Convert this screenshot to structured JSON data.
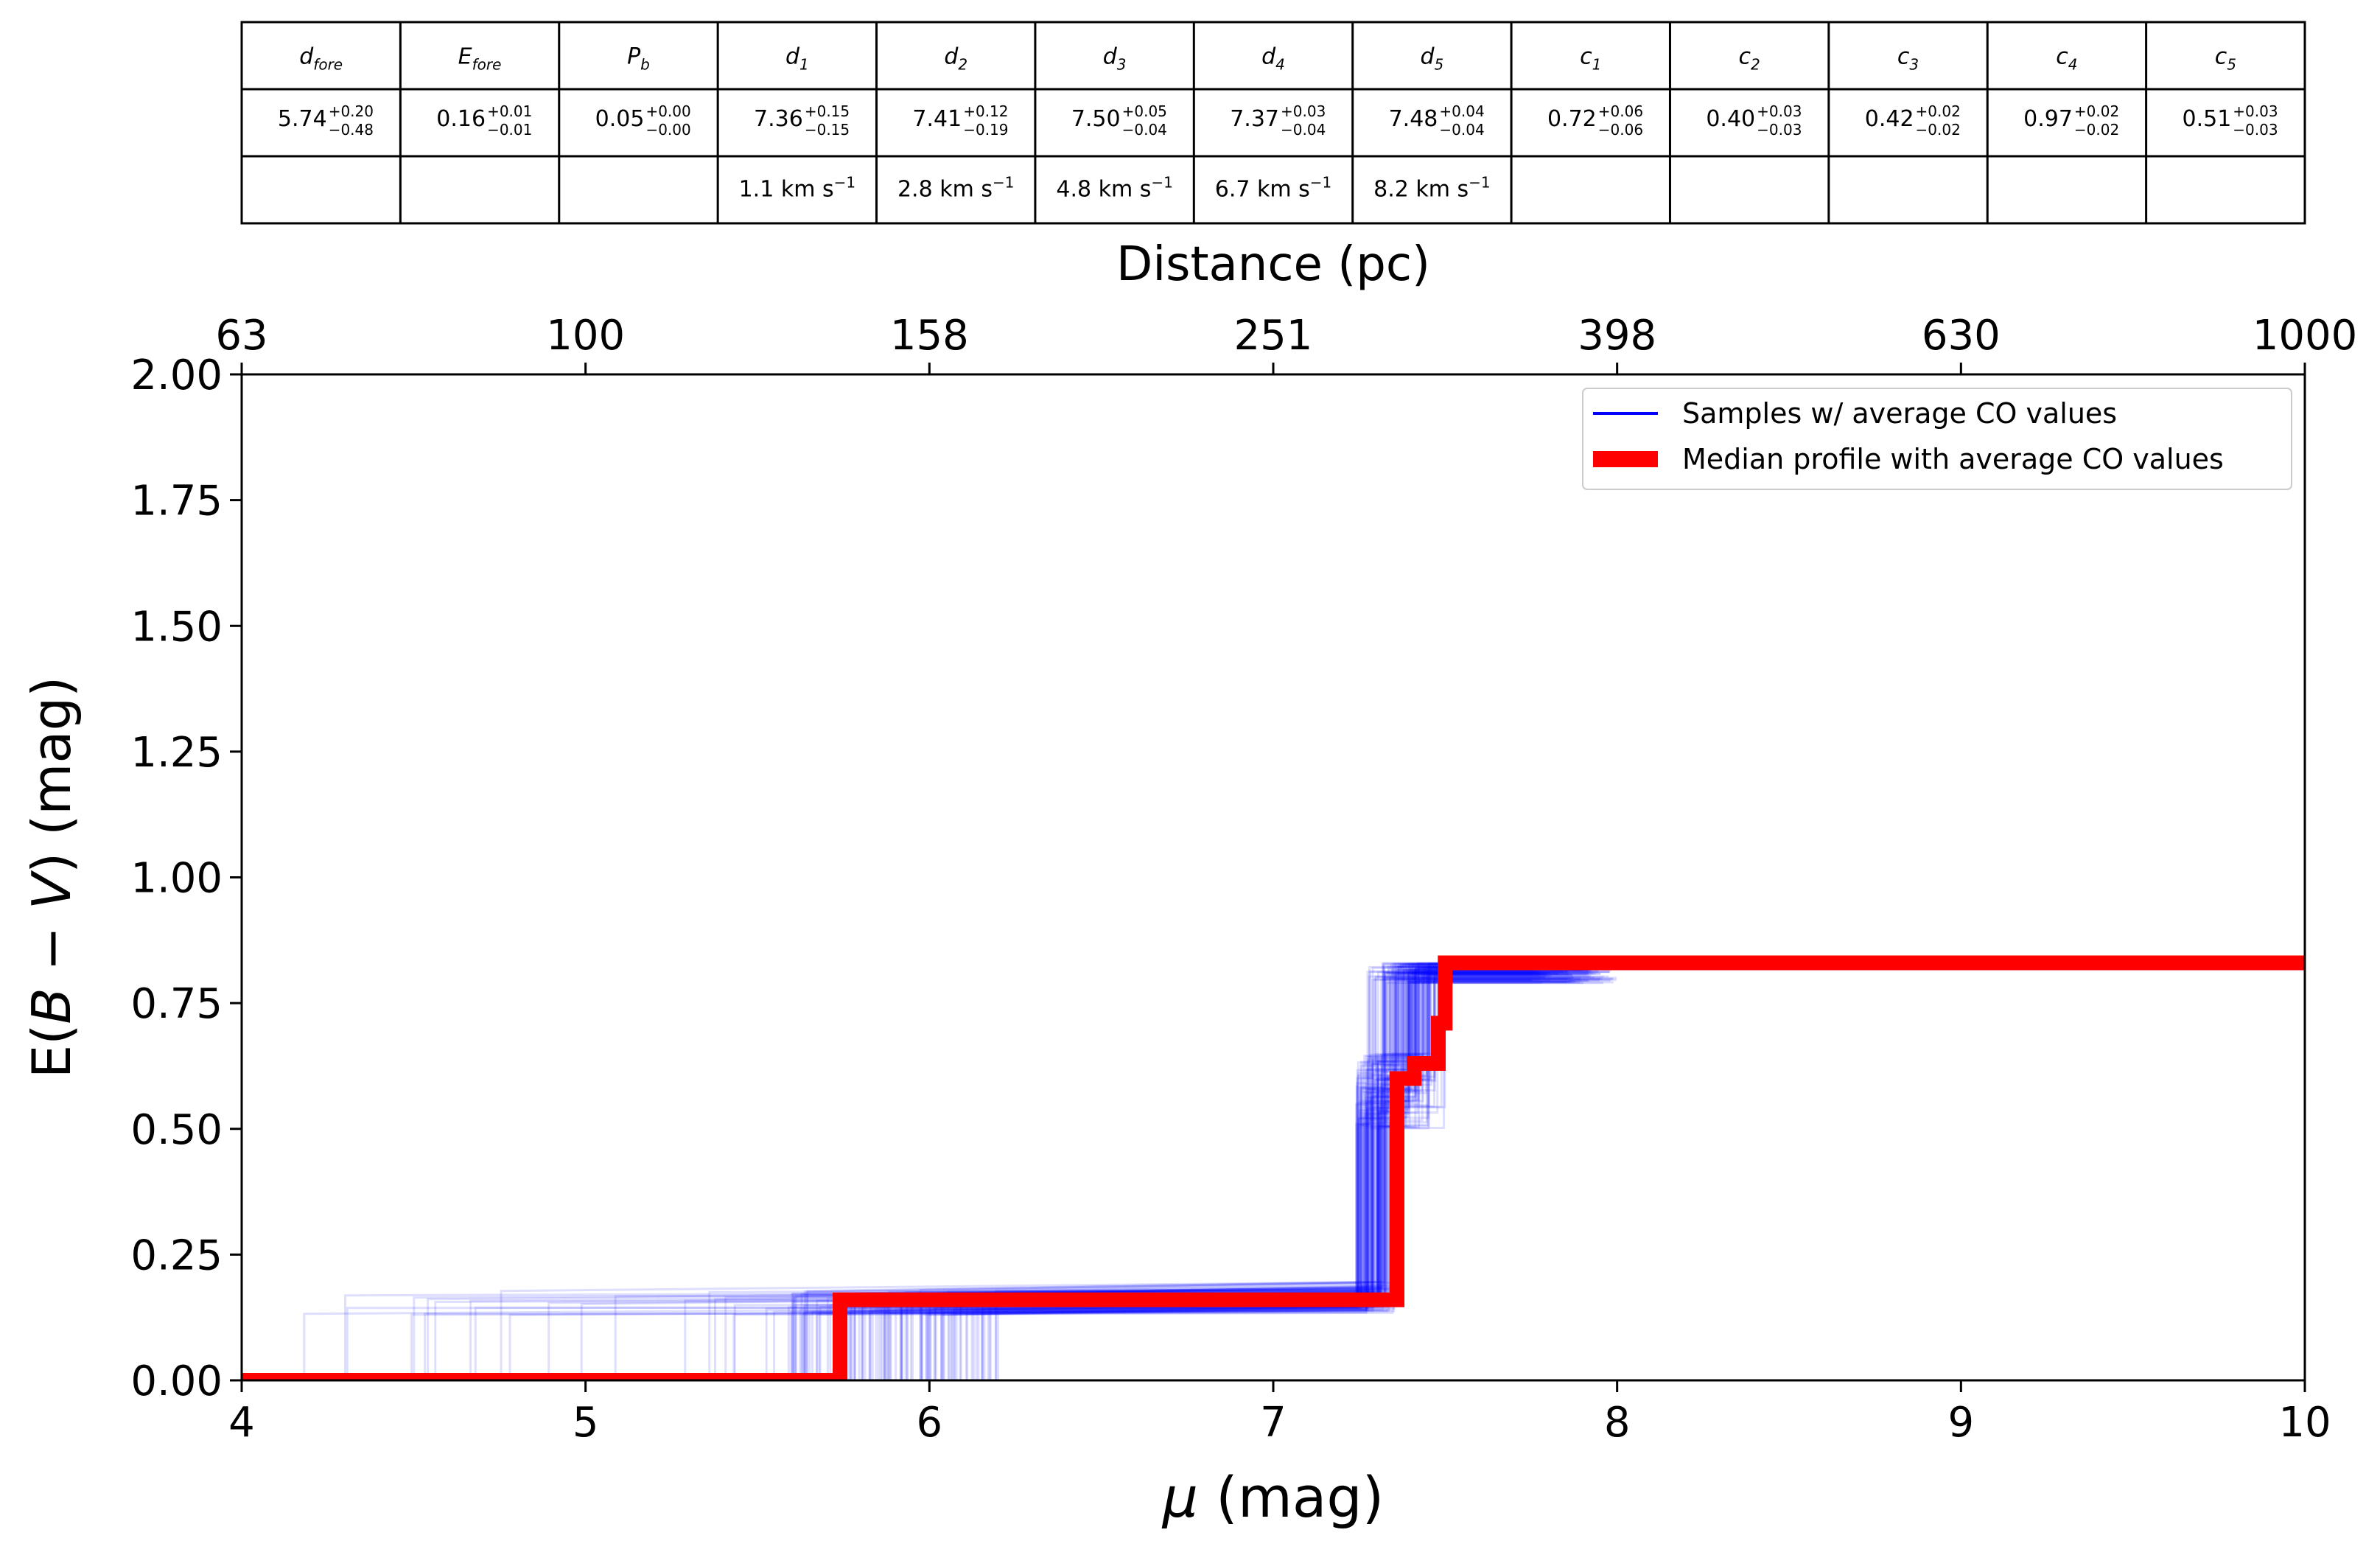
{
  "table": {
    "headers": [
      {
        "sym": "d",
        "sub": "fore"
      },
      {
        "sym": "E",
        "sub": "fore"
      },
      {
        "sym": "P",
        "sub": "b"
      },
      {
        "sym": "d",
        "sub": "1"
      },
      {
        "sym": "d",
        "sub": "2"
      },
      {
        "sym": "d",
        "sub": "3"
      },
      {
        "sym": "d",
        "sub": "4"
      },
      {
        "sym": "d",
        "sub": "5"
      },
      {
        "sym": "c",
        "sub": "1"
      },
      {
        "sym": "c",
        "sub": "2"
      },
      {
        "sym": "c",
        "sub": "3"
      },
      {
        "sym": "c",
        "sub": "4"
      },
      {
        "sym": "c",
        "sub": "5"
      }
    ],
    "values": [
      {
        "v": "5.74",
        "up": "+0.20",
        "lo": "−0.48"
      },
      {
        "v": "0.16",
        "up": "+0.01",
        "lo": "−0.01"
      },
      {
        "v": "0.05",
        "up": "+0.00",
        "lo": "−0.00"
      },
      {
        "v": "7.36",
        "up": "+0.15",
        "lo": "−0.15"
      },
      {
        "v": "7.41",
        "up": "+0.12",
        "lo": "−0.19"
      },
      {
        "v": "7.50",
        "up": "+0.05",
        "lo": "−0.04"
      },
      {
        "v": "7.37",
        "up": "+0.03",
        "lo": "−0.04"
      },
      {
        "v": "7.48",
        "up": "+0.04",
        "lo": "−0.04"
      },
      {
        "v": "0.72",
        "up": "+0.06",
        "lo": "−0.06"
      },
      {
        "v": "0.40",
        "up": "+0.03",
        "lo": "−0.03"
      },
      {
        "v": "0.42",
        "up": "+0.02",
        "lo": "−0.02"
      },
      {
        "v": "0.97",
        "up": "+0.02",
        "lo": "−0.02"
      },
      {
        "v": "0.51",
        "up": "+0.03",
        "lo": "−0.03"
      }
    ],
    "velocities": [
      "",
      "",
      "",
      "1.1 km s",
      "2.8 km s",
      "4.8 km s",
      "6.7 km s",
      "8.2 km s",
      "",
      "",
      "",
      "",
      ""
    ],
    "velocity_exp": "−1"
  },
  "chart_data": {
    "type": "line",
    "title": "",
    "xlabel": {
      "sym": "μ",
      "unit": " (mag)"
    },
    "ylabel": {
      "pre": "E(",
      "b": "B",
      "minus": " − ",
      "v": "V",
      "post": ") (mag)"
    },
    "top_xlabel": "Distance (pc)",
    "xlim": [
      4,
      10
    ],
    "ylim": [
      0,
      2
    ],
    "x_ticks": [
      4,
      5,
      6,
      7,
      8,
      9,
      10
    ],
    "x_tick_labels": [
      "4",
      "5",
      "6",
      "7",
      "8",
      "9",
      "10"
    ],
    "y_ticks": [
      0,
      0.25,
      0.5,
      0.75,
      1.0,
      1.25,
      1.5,
      1.75,
      2.0
    ],
    "y_tick_labels": [
      "0.00",
      "0.25",
      "0.50",
      "0.75",
      "1.00",
      "1.25",
      "1.50",
      "1.75",
      "2.00"
    ],
    "top_ticks": [
      4,
      5,
      6,
      7,
      8,
      9,
      10
    ],
    "top_tick_labels": [
      "63",
      "100",
      "158",
      "251",
      "398",
      "630",
      "1000"
    ],
    "legend_position": "upper-right",
    "series": [
      {
        "name": "Samples  w/ average CO values",
        "color": "#0000ff",
        "kind": "samples",
        "steps": {
          "fore_d": {
            "min": 4.15,
            "max": 6.2
          },
          "fore_e": {
            "min": 0.13,
            "max": 0.18
          },
          "cloud_d": {
            "min": 7.22,
            "max": 7.6
          },
          "final_e": {
            "min": 0.79,
            "max": 0.83
          },
          "end_x": {
            "min": 7.75,
            "max": 8.0
          }
        }
      },
      {
        "name": "Median profile with average CO values",
        "color": "#ff0000",
        "kind": "median",
        "x": [
          4,
          5.74,
          5.74,
          7.36,
          7.36,
          7.41,
          7.41,
          7.48,
          7.48,
          7.5,
          7.5,
          10
        ],
        "y": [
          0,
          0,
          0.16,
          0.16,
          0.6,
          0.6,
          0.63,
          0.63,
          0.71,
          0.71,
          0.83,
          0.83
        ]
      }
    ]
  }
}
